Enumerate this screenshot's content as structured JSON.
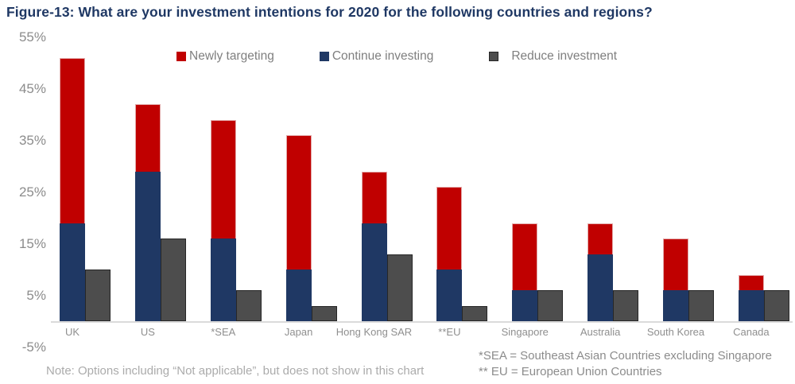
{
  "title": "Figure-13: What are your investment intentions for 2020 for the following countries and regions?",
  "legend": {
    "items": [
      {
        "label": "Newly targeting",
        "color": "#C00000"
      },
      {
        "label": "Continue investing",
        "color": "#1F3864"
      },
      {
        "label": "Reduce investment",
        "color": "#4D4D4D"
      }
    ]
  },
  "chart_data": {
    "type": "bar",
    "subtype": "stacked-plus-grouped",
    "title": "Figure-13: What are your investment intentions for 2020 for the following countries and regions?",
    "categories": [
      "UK",
      "US",
      "*SEA",
      "Japan",
      "Hong Kong SAR",
      "**EU",
      "Singapore",
      "Australia",
      "South Korea",
      "Canada"
    ],
    "series": [
      {
        "name": "Newly targeting",
        "color": "#C00000",
        "stack": "invest",
        "position": "top",
        "values": [
          32,
          13,
          23,
          26,
          10,
          16,
          13,
          6,
          10,
          3
        ]
      },
      {
        "name": "Continue investing",
        "color": "#1F3864",
        "stack": "invest",
        "position": "bottom",
        "values": [
          19,
          29,
          16,
          10,
          19,
          10,
          6,
          13,
          6,
          6
        ]
      },
      {
        "name": "Reduce investment",
        "color": "#4D4D4D",
        "stack": "separate",
        "values": [
          10,
          16,
          6,
          3,
          13,
          3,
          6,
          6,
          6,
          6
        ]
      }
    ],
    "stacked_totals": [
      51,
      42,
      39,
      36,
      29,
      26,
      19,
      19,
      16,
      9
    ],
    "xlabel": "",
    "ylabel": "",
    "ylim": [
      -5,
      55
    ],
    "y_ticks": [
      55,
      45,
      35,
      25,
      15,
      5,
      -5
    ],
    "y_tick_labels": [
      "55%",
      "45%",
      "35%",
      "25%",
      "15%",
      "5%",
      "-5%"
    ],
    "grid": false,
    "legend_position": "top-center"
  },
  "notes": {
    "left": "Note: Options including “Not applicable”, but does not show in this chart",
    "sea": "*SEA = Southeast Asian Countries excluding Singapore",
    "eu": "** EU = European Union Countries"
  }
}
